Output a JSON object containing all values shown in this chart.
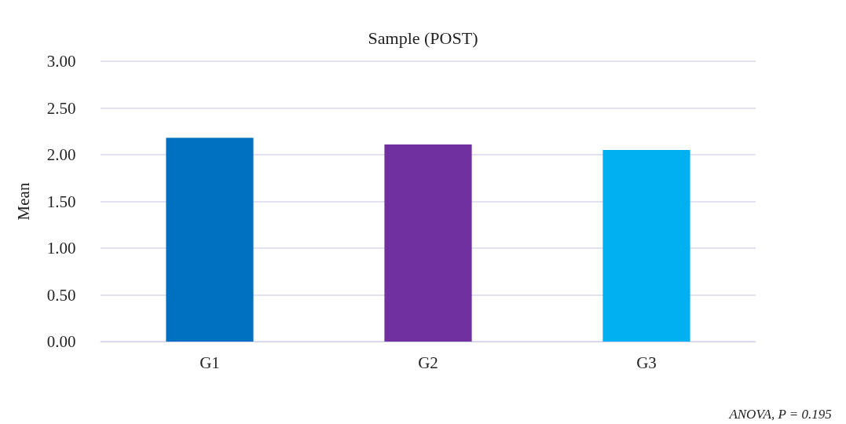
{
  "chart_data": {
    "type": "bar",
    "title": "Sample (POST)",
    "ylabel": "Mean",
    "categories": [
      "G1",
      "G2",
      "G3"
    ],
    "values": [
      2.18,
      2.11,
      2.05
    ],
    "colors": [
      "#0070c0",
      "#7030a0",
      "#00b0f0"
    ],
    "ylim": [
      0,
      3
    ],
    "yticks": [
      {
        "value": 0,
        "label": "0.00"
      },
      {
        "value": 0.5,
        "label": "0.50"
      },
      {
        "value": 1,
        "label": "1.00"
      },
      {
        "value": 1.5,
        "label": "1.50"
      },
      {
        "value": 2,
        "label": "2.00"
      },
      {
        "value": 2.5,
        "label": "2.50"
      },
      {
        "value": 3,
        "label": "3.00"
      }
    ],
    "grid": "y",
    "annotations": [
      "ANOVA, P = 0.195"
    ]
  }
}
